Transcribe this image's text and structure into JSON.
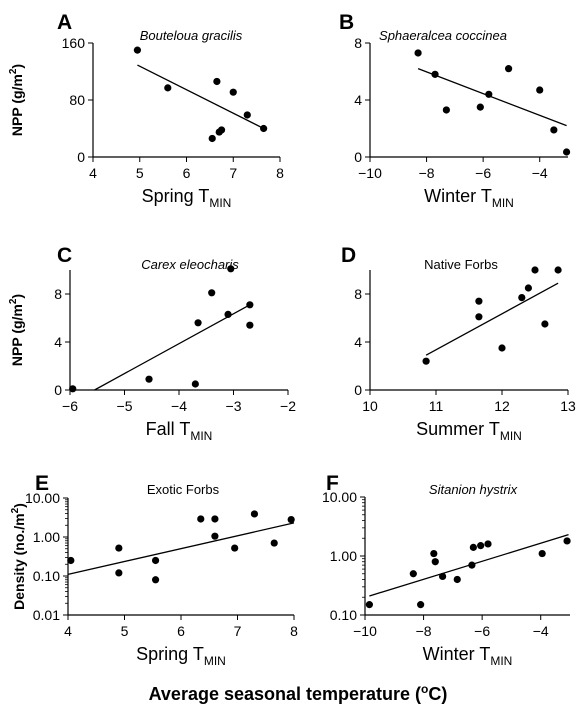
{
  "footer_label": "Average seasonal temperature (",
  "footer_unit_sup": "o",
  "footer_unit_tail": "C)",
  "chart_data": [
    {
      "panel": "A",
      "type": "scatter",
      "title": "Bouteloua gracilis",
      "title_italic": true,
      "xlabel": "Spring T",
      "xlabel_sub": "MIN",
      "ylabel": "NPP (g/m",
      "ylabel_sup": "2",
      "ylabel_tail": ")",
      "xlim": [
        4,
        8
      ],
      "ylim": [
        0,
        160
      ],
      "xticks": [
        4,
        5,
        6,
        7,
        8
      ],
      "yticks": [
        0,
        80,
        160
      ],
      "log_y": false,
      "points": [
        [
          4.95,
          150
        ],
        [
          5.6,
          97
        ],
        [
          6.55,
          26
        ],
        [
          6.65,
          106
        ],
        [
          6.7,
          35
        ],
        [
          6.75,
          38
        ],
        [
          7.0,
          91
        ],
        [
          7.3,
          59
        ],
        [
          7.65,
          40
        ]
      ],
      "trend": [
        [
          4.95,
          129
        ],
        [
          7.65,
          40
        ]
      ]
    },
    {
      "panel": "B",
      "type": "scatter",
      "title": "Sphaeralcea coccinea",
      "title_italic": true,
      "xlabel": "Winter T",
      "xlabel_sub": "MIN",
      "xlim": [
        -10,
        -3
      ],
      "ylim": [
        0,
        8
      ],
      "xticks": [
        -10,
        -8,
        -6,
        -4
      ],
      "yticks": [
        0,
        4,
        8
      ],
      "log_y": false,
      "points": [
        [
          -8.3,
          7.3
        ],
        [
          -7.7,
          5.8
        ],
        [
          -7.3,
          3.3
        ],
        [
          -6.1,
          3.5
        ],
        [
          -5.8,
          4.4
        ],
        [
          -5.1,
          6.2
        ],
        [
          -4.0,
          4.7
        ],
        [
          -3.5,
          1.9
        ],
        [
          -3.05,
          0.35
        ]
      ],
      "trend": [
        [
          -8.3,
          6.2
        ],
        [
          -3.05,
          2.2
        ]
      ]
    },
    {
      "panel": "C",
      "type": "scatter",
      "title": "Carex eleocharis",
      "title_italic": true,
      "xlabel": "Fall T",
      "xlabel_sub": "MIN",
      "ylabel": "NPP (g/m",
      "ylabel_sup": "2",
      "ylabel_tail": ")",
      "xlim": [
        -6,
        -2
      ],
      "ylim": [
        0,
        10
      ],
      "xticks": [
        -6,
        -5,
        -4,
        -3,
        -2
      ],
      "yticks": [
        0,
        4,
        8
      ],
      "log_y": false,
      "points": [
        [
          -5.95,
          0.1
        ],
        [
          -4.55,
          0.9
        ],
        [
          -3.7,
          0.5
        ],
        [
          -3.65,
          5.6
        ],
        [
          -3.4,
          8.1
        ],
        [
          -3.1,
          6.3
        ],
        [
          -3.05,
          10.1
        ],
        [
          -2.7,
          7.1
        ],
        [
          -2.7,
          5.4
        ]
      ],
      "trend": [
        [
          -5.55,
          0
        ],
        [
          -2.7,
          7.1
        ]
      ]
    },
    {
      "panel": "D",
      "type": "scatter",
      "title": "Native Forbs",
      "title_italic": false,
      "xlabel": "Summer T",
      "xlabel_sub": "MIN",
      "xlim": [
        10,
        13
      ],
      "ylim": [
        0,
        10
      ],
      "xticks": [
        10,
        11,
        12,
        13
      ],
      "yticks": [
        0,
        4,
        8
      ],
      "log_y": false,
      "points": [
        [
          10.85,
          2.4
        ],
        [
          11.65,
          7.4
        ],
        [
          11.65,
          6.1
        ],
        [
          12.0,
          3.5
        ],
        [
          12.3,
          7.7
        ],
        [
          12.4,
          8.5
        ],
        [
          12.5,
          10.0
        ],
        [
          12.65,
          5.5
        ],
        [
          12.85,
          10.0
        ]
      ],
      "trend": [
        [
          10.85,
          2.9
        ],
        [
          12.85,
          8.9
        ]
      ]
    },
    {
      "panel": "E",
      "type": "scatter",
      "title": "Exotic Forbs",
      "title_italic": false,
      "xlabel": "Spring T",
      "xlabel_sub": "MIN",
      "ylabel": "Density (no./m",
      "ylabel_sup": "2",
      "ylabel_tail": ")",
      "xlim": [
        4,
        8
      ],
      "ylim": [
        0.01,
        10
      ],
      "xticks": [
        4,
        5,
        6,
        7,
        8
      ],
      "yticks": [
        0.01,
        0.1,
        1,
        10
      ],
      "ytick_labels": [
        "0.01",
        "0.10",
        "1.00",
        "10.00"
      ],
      "log_y": true,
      "points": [
        [
          4.05,
          0.25
        ],
        [
          4.9,
          0.52
        ],
        [
          4.9,
          0.12
        ],
        [
          5.55,
          0.25
        ],
        [
          5.55,
          0.08
        ],
        [
          6.35,
          2.9
        ],
        [
          6.6,
          2.9
        ],
        [
          6.6,
          1.05
        ],
        [
          6.95,
          0.52
        ],
        [
          7.3,
          3.9
        ],
        [
          7.65,
          0.7
        ],
        [
          7.95,
          2.8
        ]
      ],
      "trend": [
        [
          4.0,
          0.11
        ],
        [
          8.0,
          2.3
        ]
      ]
    },
    {
      "panel": "F",
      "type": "scatter",
      "title": "Sitanion hystrix",
      "title_italic": true,
      "xlabel": "Winter T",
      "xlabel_sub": "MIN",
      "xlim": [
        -10,
        -3
      ],
      "ylim": [
        0.1,
        10
      ],
      "xticks": [
        -10,
        -8,
        -6,
        -4
      ],
      "yticks": [
        0.1,
        1,
        10
      ],
      "ytick_labels": [
        "0.10",
        "1.00",
        "10.00"
      ],
      "log_y": true,
      "points": [
        [
          -9.85,
          0.15
        ],
        [
          -8.35,
          0.5
        ],
        [
          -8.1,
          0.15
        ],
        [
          -7.65,
          1.1
        ],
        [
          -7.6,
          0.8
        ],
        [
          -7.35,
          0.45
        ],
        [
          -6.85,
          0.4
        ],
        [
          -6.35,
          0.7
        ],
        [
          -6.3,
          1.4
        ],
        [
          -6.05,
          1.5
        ],
        [
          -5.8,
          1.6
        ],
        [
          -3.95,
          1.1
        ],
        [
          -3.1,
          1.8
        ]
      ],
      "trend": [
        [
          -9.85,
          0.21
        ],
        [
          -3.05,
          2.3
        ]
      ]
    }
  ]
}
